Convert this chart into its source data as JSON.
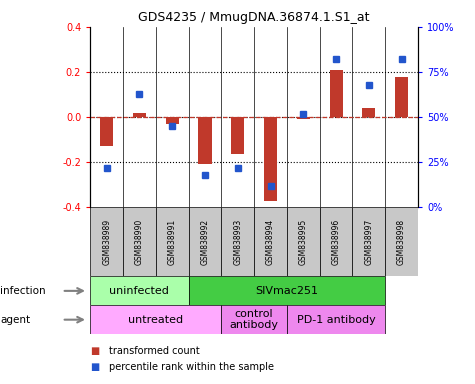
{
  "title": "GDS4235 / MmugDNA.36874.1.S1_at",
  "samples": [
    "GSM838989",
    "GSM838990",
    "GSM838991",
    "GSM838992",
    "GSM838993",
    "GSM838994",
    "GSM838995",
    "GSM838996",
    "GSM838997",
    "GSM838998"
  ],
  "transformed_count": [
    -0.13,
    0.02,
    -0.03,
    -0.21,
    -0.165,
    -0.37,
    -0.01,
    0.21,
    0.04,
    0.18
  ],
  "percentile_rank": [
    22,
    63,
    45,
    18,
    22,
    12,
    52,
    82,
    68,
    82
  ],
  "bar_color": "#C0392B",
  "dot_color": "#2255CC",
  "label_bg_color": "#C8C8C8",
  "infection_groups": [
    {
      "label": "uninfected",
      "start": 0,
      "end": 3,
      "color": "#AAFFAA"
    },
    {
      "label": "SIVmac251",
      "start": 3,
      "end": 9,
      "color": "#44CC44"
    }
  ],
  "agent_groups": [
    {
      "label": "untreated",
      "start": 0,
      "end": 4,
      "color": "#FFAAFF"
    },
    {
      "label": "control\nantibody",
      "start": 4,
      "end": 6,
      "color": "#EE88EE"
    },
    {
      "label": "PD-1 antibody",
      "start": 6,
      "end": 9,
      "color": "#EE88EE"
    }
  ],
  "ylim_left": [
    -0.4,
    0.4
  ],
  "ylim_right": [
    0,
    100
  ],
  "yticks_left": [
    -0.4,
    -0.2,
    0.0,
    0.2,
    0.4
  ],
  "yticks_right": [
    0,
    25,
    50,
    75,
    100
  ],
  "ytick_labels_right": [
    "0%",
    "25%",
    "50%",
    "75%",
    "100%"
  ],
  "legend_entries": [
    "transformed count",
    "percentile rank within the sample"
  ],
  "hline_values": [
    -0.2,
    0.0,
    0.2
  ],
  "bar_width": 0.4
}
